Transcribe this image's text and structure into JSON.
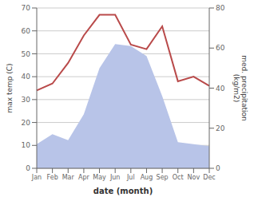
{
  "chart_data": {
    "type": "line",
    "xlabel": "date (month)",
    "ylabel": "max temp (C)",
    "y2label": "med. precipitation\n(kg/m2)",
    "categories": [
      "Jan",
      "Feb",
      "Mar",
      "Apr",
      "May",
      "Jun",
      "Jul",
      "Aug",
      "Sep",
      "Oct",
      "Nov",
      "Dec"
    ],
    "series": [
      {
        "type": "area",
        "color": "#b8c4e8",
        "axis": "y2",
        "values": [
          12,
          17,
          14,
          27,
          50,
          62,
          61,
          56,
          36,
          13,
          12,
          11
        ]
      },
      {
        "type": "line",
        "color": "#b94a4a",
        "axis": "y",
        "values": [
          34,
          37,
          46,
          58,
          67,
          67,
          54,
          52,
          62,
          38,
          40,
          36
        ]
      }
    ],
    "ylim": [
      0,
      70
    ],
    "yticks": [
      0,
      10,
      20,
      30,
      40,
      50,
      60,
      70
    ],
    "y2lim": [
      0,
      80
    ],
    "y2ticks": [
      0,
      20,
      40,
      60,
      80
    ],
    "grid": true
  }
}
